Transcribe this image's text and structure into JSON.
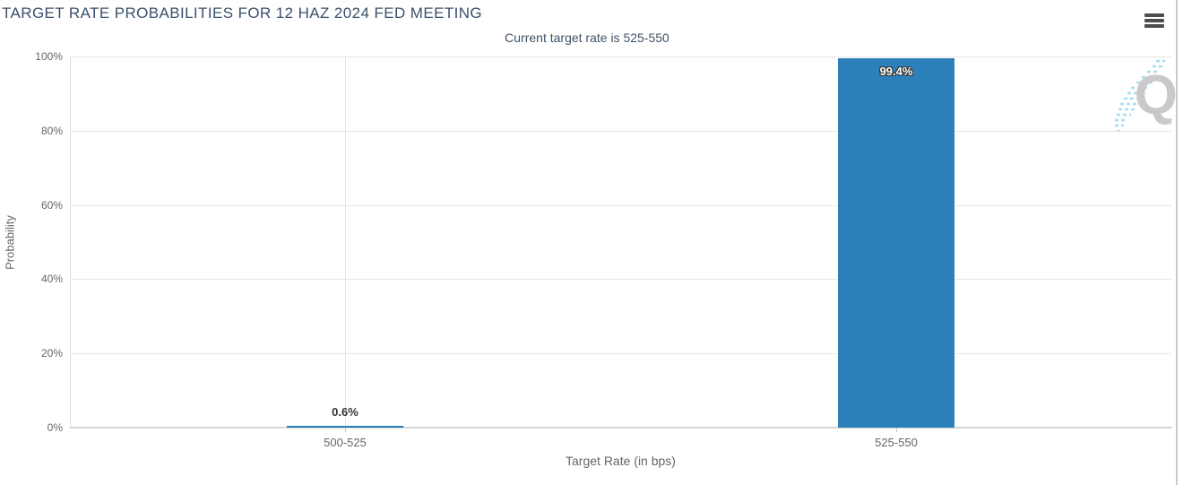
{
  "header": {
    "title": "TARGET RATE PROBABILITIES FOR 12 HAZ 2024 FED MEETING",
    "subtitle": "Current target rate is 525-550"
  },
  "toolbar": {
    "menu_icon": "hamburger-menu-icon"
  },
  "watermark": {
    "letter": "Q"
  },
  "colors": {
    "bar": "#2b80b9",
    "title_text": "#3b506b",
    "axis_text": "#666666",
    "gridline": "#e6e6e6",
    "watermark_gray": "#c9c9c9",
    "watermark_cyan": "#a8dcf0"
  },
  "chart_data": {
    "type": "bar",
    "title": "TARGET RATE PROBABILITIES FOR 12 HAZ 2024 FED MEETING",
    "subtitle": "Current target rate is 525-550",
    "categories": [
      "500-525",
      "525-550"
    ],
    "values": [
      0.6,
      99.4
    ],
    "value_labels": [
      "0.6%",
      "99.4%"
    ],
    "xlabel": "Target Rate (in bps)",
    "ylabel": "Probability",
    "ylim": [
      0,
      100
    ],
    "ytick_values": [
      0,
      20,
      40,
      60,
      80,
      100
    ],
    "ytick_labels": [
      "0%",
      "20%",
      "40%",
      "60%",
      "80%",
      "100%"
    ],
    "grid": true,
    "legend_position": "none",
    "bar_color": "#2b80b9"
  }
}
